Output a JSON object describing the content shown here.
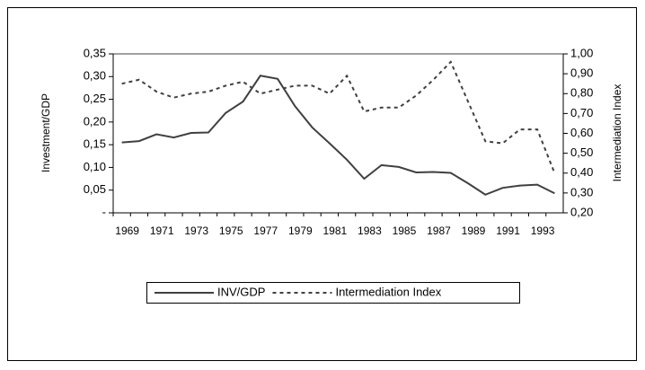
{
  "chart_data": {
    "type": "line",
    "y_label": "Investment/GDP",
    "y2_label": "Intermediation Index",
    "categories": [
      "1969",
      null,
      "1971",
      null,
      "1973",
      null,
      "1975",
      null,
      "1977",
      null,
      "1979",
      null,
      "1981",
      null,
      "1983",
      null,
      "1985",
      null,
      "1987",
      null,
      "1989",
      null,
      "1991",
      null,
      "1993",
      null
    ],
    "series": [
      {
        "name": "INV/GDP",
        "color": "#404040",
        "dash": "solid",
        "values": [
          0.155,
          0.158,
          0.173,
          0.166,
          0.176,
          0.177,
          0.22,
          0.245,
          0.302,
          0.295,
          0.235,
          0.188,
          0.153,
          0.117,
          0.075,
          0.105,
          0.101,
          0.089,
          0.09,
          0.088,
          0.065,
          0.04,
          0.055,
          0.06,
          0.062,
          0.043
        ]
      },
      {
        "name": "Intermediation Index",
        "color": "#404040",
        "dash": "dashed",
        "axis": "y2",
        "values": [
          0.85,
          0.87,
          0.81,
          0.78,
          0.8,
          0.81,
          0.84,
          0.86,
          0.8,
          0.82,
          0.84,
          0.84,
          0.8,
          0.89,
          0.71,
          0.73,
          0.73,
          0.79,
          0.87,
          0.96,
          0.76,
          0.56,
          0.55,
          0.62,
          0.62,
          0.4
        ]
      }
    ],
    "ylim": [
      0,
      0.35
    ],
    "yticks": [
      {
        "value": 0,
        "label": "-"
      },
      {
        "value": 0.05,
        "label": "0,05"
      },
      {
        "value": 0.1,
        "label": "0,10"
      },
      {
        "value": 0.15,
        "label": "0,15"
      },
      {
        "value": 0.2,
        "label": "0,20"
      },
      {
        "value": 0.25,
        "label": "0,25"
      },
      {
        "value": 0.3,
        "label": "0,30"
      },
      {
        "value": 0.35,
        "label": "0,35"
      }
    ],
    "y2lim": [
      0.2,
      1.0
    ],
    "y2ticks": [
      {
        "value": 0.2,
        "label": "0,20"
      },
      {
        "value": 0.3,
        "label": "0,30"
      },
      {
        "value": 0.4,
        "label": "0,40"
      },
      {
        "value": 0.5,
        "label": "0,50"
      },
      {
        "value": 0.6,
        "label": "0,60"
      },
      {
        "value": 0.7,
        "label": "0,70"
      },
      {
        "value": 0.8,
        "label": "0,80"
      },
      {
        "value": 0.9,
        "label": "0,90"
      },
      {
        "value": 1.0,
        "label": "1,00"
      }
    ],
    "grid": false,
    "legend": "bottom"
  }
}
